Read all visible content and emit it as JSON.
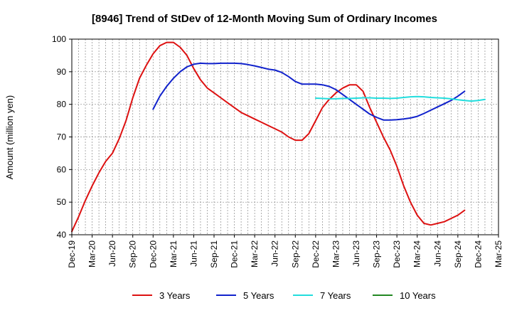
{
  "chart_data": {
    "type": "line",
    "title": "[8946]  Trend of StDev of 12-Month Moving Sum of Ordinary Incomes",
    "xlabel": "",
    "ylabel": "Amount (million yen)",
    "ylim": [
      40,
      100
    ],
    "yticks": [
      40,
      50,
      60,
      70,
      80,
      90,
      100
    ],
    "grid": true,
    "legend_position": "bottom",
    "x_start": "Dec-19",
    "x_ticks": [
      "Dec-19",
      "Mar-20",
      "Jun-20",
      "Sep-20",
      "Dec-20",
      "Mar-21",
      "Jun-21",
      "Sep-21",
      "Dec-21",
      "Mar-22",
      "Jun-22",
      "Sep-22",
      "Dec-22",
      "Mar-23",
      "Jun-23",
      "Sep-23",
      "Dec-23",
      "Mar-24",
      "Jun-24",
      "Sep-24",
      "Dec-24",
      "Mar-25"
    ],
    "series": [
      {
        "name": "3 Years",
        "color": "#dd1111",
        "start_index": 0,
        "values": [
          41,
          45.5,
          50.5,
          55,
          59,
          62.5,
          65,
          69.5,
          75,
          82,
          88,
          92,
          95.5,
          98,
          99,
          99,
          97.5,
          95,
          91,
          87.5,
          85,
          83.5,
          82,
          80.5,
          79,
          77.5,
          76.5,
          75.5,
          74.5,
          73.5,
          72.5,
          71.5,
          70,
          69,
          69,
          71,
          75,
          79,
          81.5,
          83.5,
          85,
          86,
          86,
          84,
          79,
          74.5,
          70,
          66,
          61,
          55,
          50,
          46,
          43.5,
          43,
          43.5,
          44,
          45,
          46,
          47.5
        ]
      },
      {
        "name": "5 Years",
        "color": "#1122cc",
        "start_index": 12,
        "values": [
          78.5,
          82.5,
          85.5,
          88,
          90,
          91.5,
          92.3,
          92.6,
          92.5,
          92.5,
          92.6,
          92.6,
          92.6,
          92.5,
          92.2,
          91.8,
          91.3,
          90.8,
          90.5,
          89.8,
          88.5,
          87,
          86.2,
          86.2,
          86.2,
          86,
          85.5,
          84.5,
          83,
          81.5,
          80,
          78.5,
          77,
          76,
          75.2,
          75.2,
          75.3,
          75.5,
          75.8,
          76.3,
          77.2,
          78.2,
          79.2,
          80.2,
          81.2,
          82.5,
          84
        ]
      },
      {
        "name": "7 Years",
        "color": "#22dddd",
        "start_index": 36,
        "values": [
          81.9,
          81.8,
          81.7,
          81.7,
          81.8,
          81.8,
          81.9,
          82,
          82,
          81.9,
          81.9,
          81.8,
          81.9,
          82.1,
          82.3,
          82.4,
          82.3,
          82.1,
          82,
          81.9,
          81.7,
          81.4,
          81.2,
          81,
          81.2,
          81.5
        ]
      },
      {
        "name": "10 Years",
        "color": "#228822",
        "start_index": 0,
        "values": []
      }
    ]
  }
}
